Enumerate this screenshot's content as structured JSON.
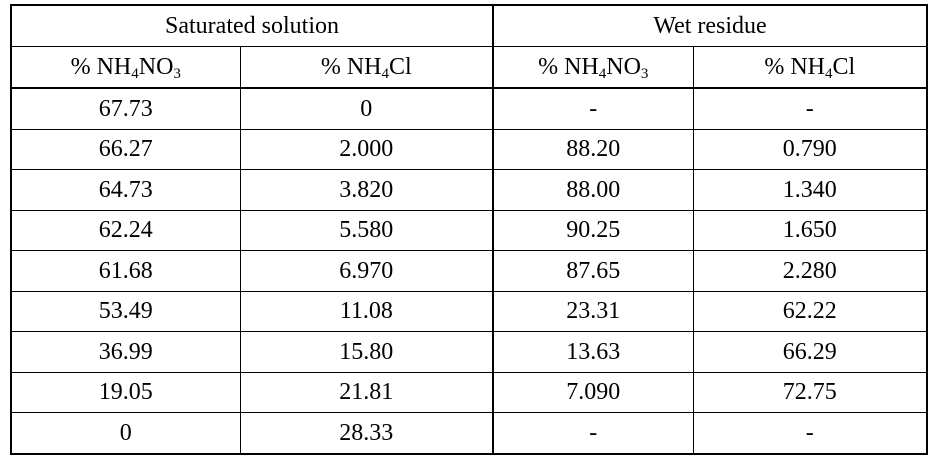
{
  "table": {
    "group_headers": [
      "Saturated solution",
      "Wet residue"
    ],
    "column_headers": [
      {
        "prefix": "% NH",
        "sub1": "4",
        "mid": "NO",
        "sub2": "3"
      },
      {
        "prefix": "% NH",
        "sub1": "4",
        "mid": "Cl",
        "sub2": ""
      },
      {
        "prefix": "% NH",
        "sub1": "4",
        "mid": "NO",
        "sub2": "3"
      },
      {
        "prefix": "% NH",
        "sub1": "4",
        "mid": "Cl",
        "sub2": ""
      }
    ],
    "rows": [
      [
        "67.73",
        "0",
        "-",
        "-"
      ],
      [
        "66.27",
        "2.000",
        "88.20",
        "0.790"
      ],
      [
        "64.73",
        "3.820",
        "88.00",
        "1.340"
      ],
      [
        "62.24",
        "5.580",
        "90.25",
        "1.650"
      ],
      [
        "61.68",
        "6.970",
        "87.65",
        "2.280"
      ],
      [
        "53.49",
        "11.08",
        "23.31",
        "62.22"
      ],
      [
        "36.99",
        "15.80",
        "13.63",
        "66.29"
      ],
      [
        "19.05",
        "21.81",
        "7.090",
        "72.75"
      ],
      [
        "0",
        "28.33",
        "-",
        "-"
      ]
    ]
  }
}
